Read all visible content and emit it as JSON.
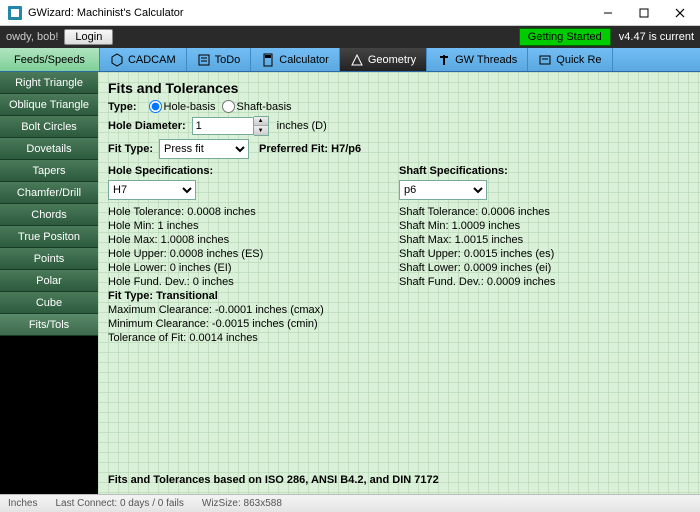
{
  "title": "GWizard: Machinist's Calculator",
  "userbar": {
    "greeting": "owdy, bob!",
    "login": "Login",
    "getting_started": "Getting Started",
    "version": "v4.47 is current"
  },
  "tabs": {
    "feeds": "Feeds/Speeds",
    "cadcam": "CADCAM",
    "todo": "ToDo",
    "calculator": "Calculator",
    "geometry": "Geometry",
    "gwthreads": "GW Threads",
    "quick": "Quick Re"
  },
  "sidebar": [
    "Right Triangle",
    "Oblique Triangle",
    "Bolt Circles",
    "Dovetails",
    "Tapers",
    "Chamfer/Drill",
    "Chords",
    "True Positon",
    "Points",
    "Polar",
    "Cube",
    "Fits/Tols"
  ],
  "page": {
    "heading": "Fits and Tolerances",
    "type_label": "Type:",
    "type_opts": {
      "hole": "Hole-basis",
      "shaft": "Shaft-basis"
    },
    "hole_dia_label": "Hole Diameter:",
    "hole_dia_value": "1",
    "hole_dia_unit": "inches (D)",
    "fit_type_label": "Fit Type:",
    "fit_type_value": "Press fit",
    "preferred_fit_label": "Preferred Fit: H7/p6",
    "hole_spec_header": "Hole Specifications:",
    "hole_grade": "H7",
    "hole_lines": [
      "Hole Tolerance: 0.0008 inches",
      "Hole Min: 1 inches",
      "Hole Max: 1.0008 inches",
      "Hole Upper: 0.0008 inches (ES)",
      "Hole Lower: 0 inches (EI)",
      "Hole Fund. Dev.: 0 inches"
    ],
    "shaft_spec_header": "Shaft Specifications:",
    "shaft_grade": "p6",
    "shaft_lines": [
      "Shaft Tolerance: 0.0006 inches",
      "Shaft Min: 1.0009 inches",
      "Shaft Max: 1.0015 inches",
      "Shaft Upper: 0.0015 inches (es)",
      "Shaft Lower: 0.0009 inches (ei)",
      "Shaft Fund. Dev.: 0.0009 inches"
    ],
    "fit_trans": "Fit Type: Transitional",
    "max_clear": "Maximum Clearance: -0.0001 inches (cmax)",
    "min_clear": "Minimum Clearance: -0.0015 inches (cmin)",
    "tol_of_fit": "Tolerance of Fit: 0.0014 inches",
    "footnote": "Fits and Tolerances based on ISO 286, ANSI B4.2, and DIN 7172"
  },
  "status": {
    "units": "Inches",
    "connect": "Last Connect: 0 days / 0 fails",
    "wizsize": "WizSize: 863x588"
  }
}
